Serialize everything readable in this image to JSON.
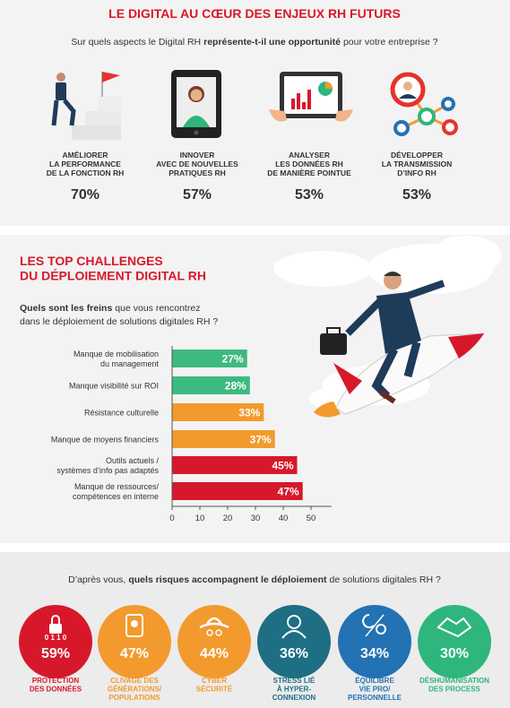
{
  "header": {
    "title": "LE DIGITAL AU CŒUR DES ENJEUX RH FUTURS",
    "question_start": "Sur quels aspects le Digital RH",
    "question_bold": "représente-t-il une opportunité",
    "question_end": "pour votre entreprise ?"
  },
  "opportunities": [
    {
      "label": "AMÉLIORER\nLA PERFORMANCE\nDE LA FONCTION RH",
      "value": "70%"
    },
    {
      "label": "INNOVER\nAVEC DE NOUVELLES\nPRATIQUES RH",
      "value": "57%"
    },
    {
      "label": "ANALYSER\nLES DONNÉES RH\nDE MANIÈRE POINTUE",
      "value": "53%"
    },
    {
      "label": "DÉVELOPPER\nLA TRANSMISSION\nD’INFO RH",
      "value": "53%"
    }
  ],
  "challenges": {
    "title": "LES TOP CHALLENGES\nDU DÉPLOIEMENT DIGITAL RH",
    "question_bold": "Quels sont les freins",
    "question_line1": "que vous rencontrez",
    "question_line2": "dans le déploiement de solutions digitales RH ?"
  },
  "chart_data": {
    "type": "hbar",
    "categories": [
      "Manque de mobilisation\ndu management",
      "Manque visibilité sur ROI",
      "Résistance culturelle",
      "Manque de moyens financiers",
      "Outils actuels /\nsystèmes d’info pas adaptés",
      "Manque de ressources/\ncompétences en interne"
    ],
    "values": [
      27,
      28,
      33,
      37,
      45,
      47
    ],
    "value_labels": [
      "27%",
      "28%",
      "33%",
      "37%",
      "45%",
      "47%"
    ],
    "colors": [
      "#3dba7f",
      "#3dba7f",
      "#f29a2e",
      "#f29a2e",
      "#d7182a",
      "#d7182a"
    ],
    "xlim": [
      0,
      50
    ],
    "xticks": [
      0,
      10,
      20,
      30,
      40,
      50
    ]
  },
  "risks": {
    "question_start": "D’après vous,",
    "question_bold": "quels risques accompagnent le déploiement",
    "question_end": "de solutions digitales RH ?",
    "items": [
      {
        "icon_text": "0 1 1 0",
        "value": "59%",
        "label": "PROTECTION\nDES DONNÉES",
        "color": "#d7182a"
      },
      {
        "value": "47%",
        "label": "CLIVAGE DES\nGÉNÉRATIONS/\nPOPULATIONS",
        "color": "#f29a2e"
      },
      {
        "value": "44%",
        "label": "CYBER\nSÉCURITÉ",
        "color": "#f29a2e"
      },
      {
        "value": "36%",
        "label": "STRESS LIÉ\nÀ HYPER-\nCONNEXION",
        "color": "#1e6e84"
      },
      {
        "value": "34%",
        "label": "ÉQUILIBRE\nVIE PRO/\nPERSONNELLE",
        "color": "#2372b3"
      },
      {
        "value": "30%",
        "label": "DÉSHUMANISATION\nDES PROCESS",
        "color": "#2eb67d"
      }
    ]
  }
}
